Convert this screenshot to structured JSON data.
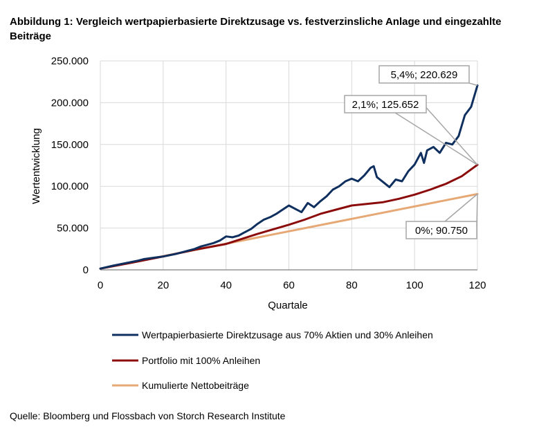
{
  "title": "Abbildung 1: Vergleich wertpapierbasierte Direktzusage vs. festverzinsliche Anlage und eingezahlte Beiträge",
  "source": "Quelle: Bloomberg und Flossbach von Storch Research Institute",
  "chart_data": {
    "type": "line",
    "xlabel": "Quartale",
    "ylabel": "Wertentwicklung",
    "xlim": [
      0,
      120
    ],
    "ylim": [
      0,
      250000
    ],
    "xticks": [
      0,
      20,
      40,
      60,
      80,
      100,
      120
    ],
    "xtick_labels": [
      "0",
      "20",
      "40",
      "60",
      "80",
      "100",
      "120"
    ],
    "yticks": [
      0,
      50000,
      100000,
      150000,
      200000,
      250000
    ],
    "ytick_labels": [
      "0",
      "50.000",
      "100.000",
      "150.000",
      "200.000",
      "250.000"
    ],
    "grid": true,
    "legend_position": "bottom",
    "series": [
      {
        "name": "Wertpapierbasierte Direktzusage aus 70% Aktien und 30% Anleihen",
        "color": "#0f2f5f",
        "x": [
          0,
          4,
          8,
          12,
          14,
          16,
          18,
          20,
          24,
          28,
          30,
          32,
          34,
          36,
          38,
          40,
          42,
          44,
          46,
          48,
          50,
          52,
          54,
          56,
          58,
          60,
          62,
          64,
          66,
          68,
          70,
          72,
          74,
          76,
          78,
          80,
          82,
          84,
          86,
          87,
          88,
          90,
          92,
          94,
          96,
          98,
          100,
          102,
          103,
          104,
          106,
          108,
          110,
          112,
          114,
          116,
          118,
          120
        ],
        "values": [
          1500,
          5000,
          8000,
          11000,
          13000,
          14000,
          15000,
          16000,
          19000,
          23000,
          25000,
          28000,
          30000,
          32000,
          35000,
          40000,
          39000,
          41000,
          45000,
          49000,
          55000,
          60000,
          63000,
          67000,
          72000,
          77000,
          73000,
          69000,
          80000,
          75000,
          82000,
          88000,
          96000,
          100000,
          106000,
          109000,
          106000,
          113000,
          122000,
          124000,
          111000,
          105000,
          99000,
          108000,
          106000,
          118000,
          126000,
          140000,
          128000,
          143000,
          147000,
          140000,
          152000,
          150000,
          160000,
          185000,
          195000,
          220629
        ]
      },
      {
        "name": "Portfolio mit 100% Anleihen",
        "color": "#8b0b0b",
        "x": [
          0,
          10,
          20,
          30,
          40,
          50,
          60,
          65,
          70,
          75,
          80,
          85,
          90,
          95,
          100,
          105,
          110,
          115,
          120
        ],
        "values": [
          1500,
          8500,
          16000,
          24000,
          31000,
          43000,
          54000,
          60000,
          67000,
          72000,
          77000,
          79000,
          81000,
          85000,
          90000,
          96000,
          103000,
          112000,
          125652
        ]
      },
      {
        "name": "Kumulierte Nettobeiträge",
        "color": "#e6a875",
        "x": [
          0,
          120
        ],
        "values": [
          1500,
          90750
        ]
      }
    ],
    "annotations": [
      {
        "text": "5,4%;  220.629",
        "x": 120,
        "y": 220629
      },
      {
        "text": "2,1%;  125.652",
        "x": 120,
        "y": 125652
      },
      {
        "text": "0%;  90.750",
        "x": 120,
        "y": 90750
      }
    ]
  }
}
